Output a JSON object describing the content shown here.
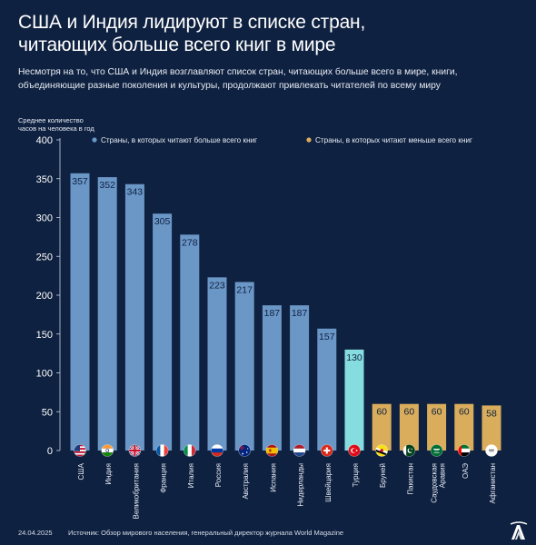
{
  "header": {
    "title_line1": "США и Индия лидируют в списке стран,",
    "title_line2": "читающих больше всего книг в мире",
    "subtitle_line1": "Несмотря на то, что США и Индия возглавляют список стран, читающих больше всего в мире, книги,",
    "subtitle_line2": "объединяющие разные поколения и культуры, продолжают привлекать читателей по всему миру"
  },
  "footer": {
    "date": "24.04.2025",
    "source": "Источник: Обзор мирового населения, генеральный директор журнала World Magazine",
    "logo_text": "AA"
  },
  "colors": {
    "background": "#0f2140",
    "most": "#6b97c7",
    "least": "#d9ad5c",
    "turkey": "#86dde0",
    "axis": "#c9d2e0"
  },
  "chart_data": {
    "type": "bar",
    "ylabel_line1": "Среднее количество",
    "ylabel_line2": "часов на человека в год",
    "ylim": [
      0,
      400
    ],
    "yticks": [
      0,
      50,
      100,
      150,
      200,
      250,
      300,
      350,
      400
    ],
    "grid": false,
    "legend_placement": "top",
    "legend": [
      {
        "label": "Страны, в которых читают больше всего книг",
        "color": "#6b97c7"
      },
      {
        "label": "Страны, в которых читают меньше всего книг",
        "color": "#d9ad5c"
      }
    ],
    "categories": [
      "США",
      "Индия",
      "Великобритания",
      "Франция",
      "Италия",
      "Россия",
      "Австралия",
      "Испания",
      "Нидерланды",
      "Швейцария",
      "Турция",
      "Бруней",
      "Пакистан",
      "Саудовская Аравия",
      "ОАЭ",
      "Афганистан"
    ],
    "values": [
      357,
      352,
      343,
      305,
      278,
      223,
      217,
      187,
      187,
      157,
      130,
      60,
      60,
      60,
      60,
      58
    ],
    "groups": [
      "most",
      "most",
      "most",
      "most",
      "most",
      "most",
      "most",
      "most",
      "most",
      "most",
      "turkey",
      "least",
      "least",
      "least",
      "least",
      "least"
    ],
    "flags": [
      "us-flag-icon",
      "india-flag-icon",
      "uk-flag-icon",
      "france-flag-icon",
      "italy-flag-icon",
      "russia-flag-icon",
      "australia-flag-icon",
      "spain-flag-icon",
      "netherlands-flag-icon",
      "switzerland-flag-icon",
      "turkey-flag-icon",
      "brunei-flag-icon",
      "pakistan-flag-icon",
      "saudi-arabia-flag-icon",
      "uae-flag-icon",
      "afghanistan-flag-icon"
    ]
  }
}
